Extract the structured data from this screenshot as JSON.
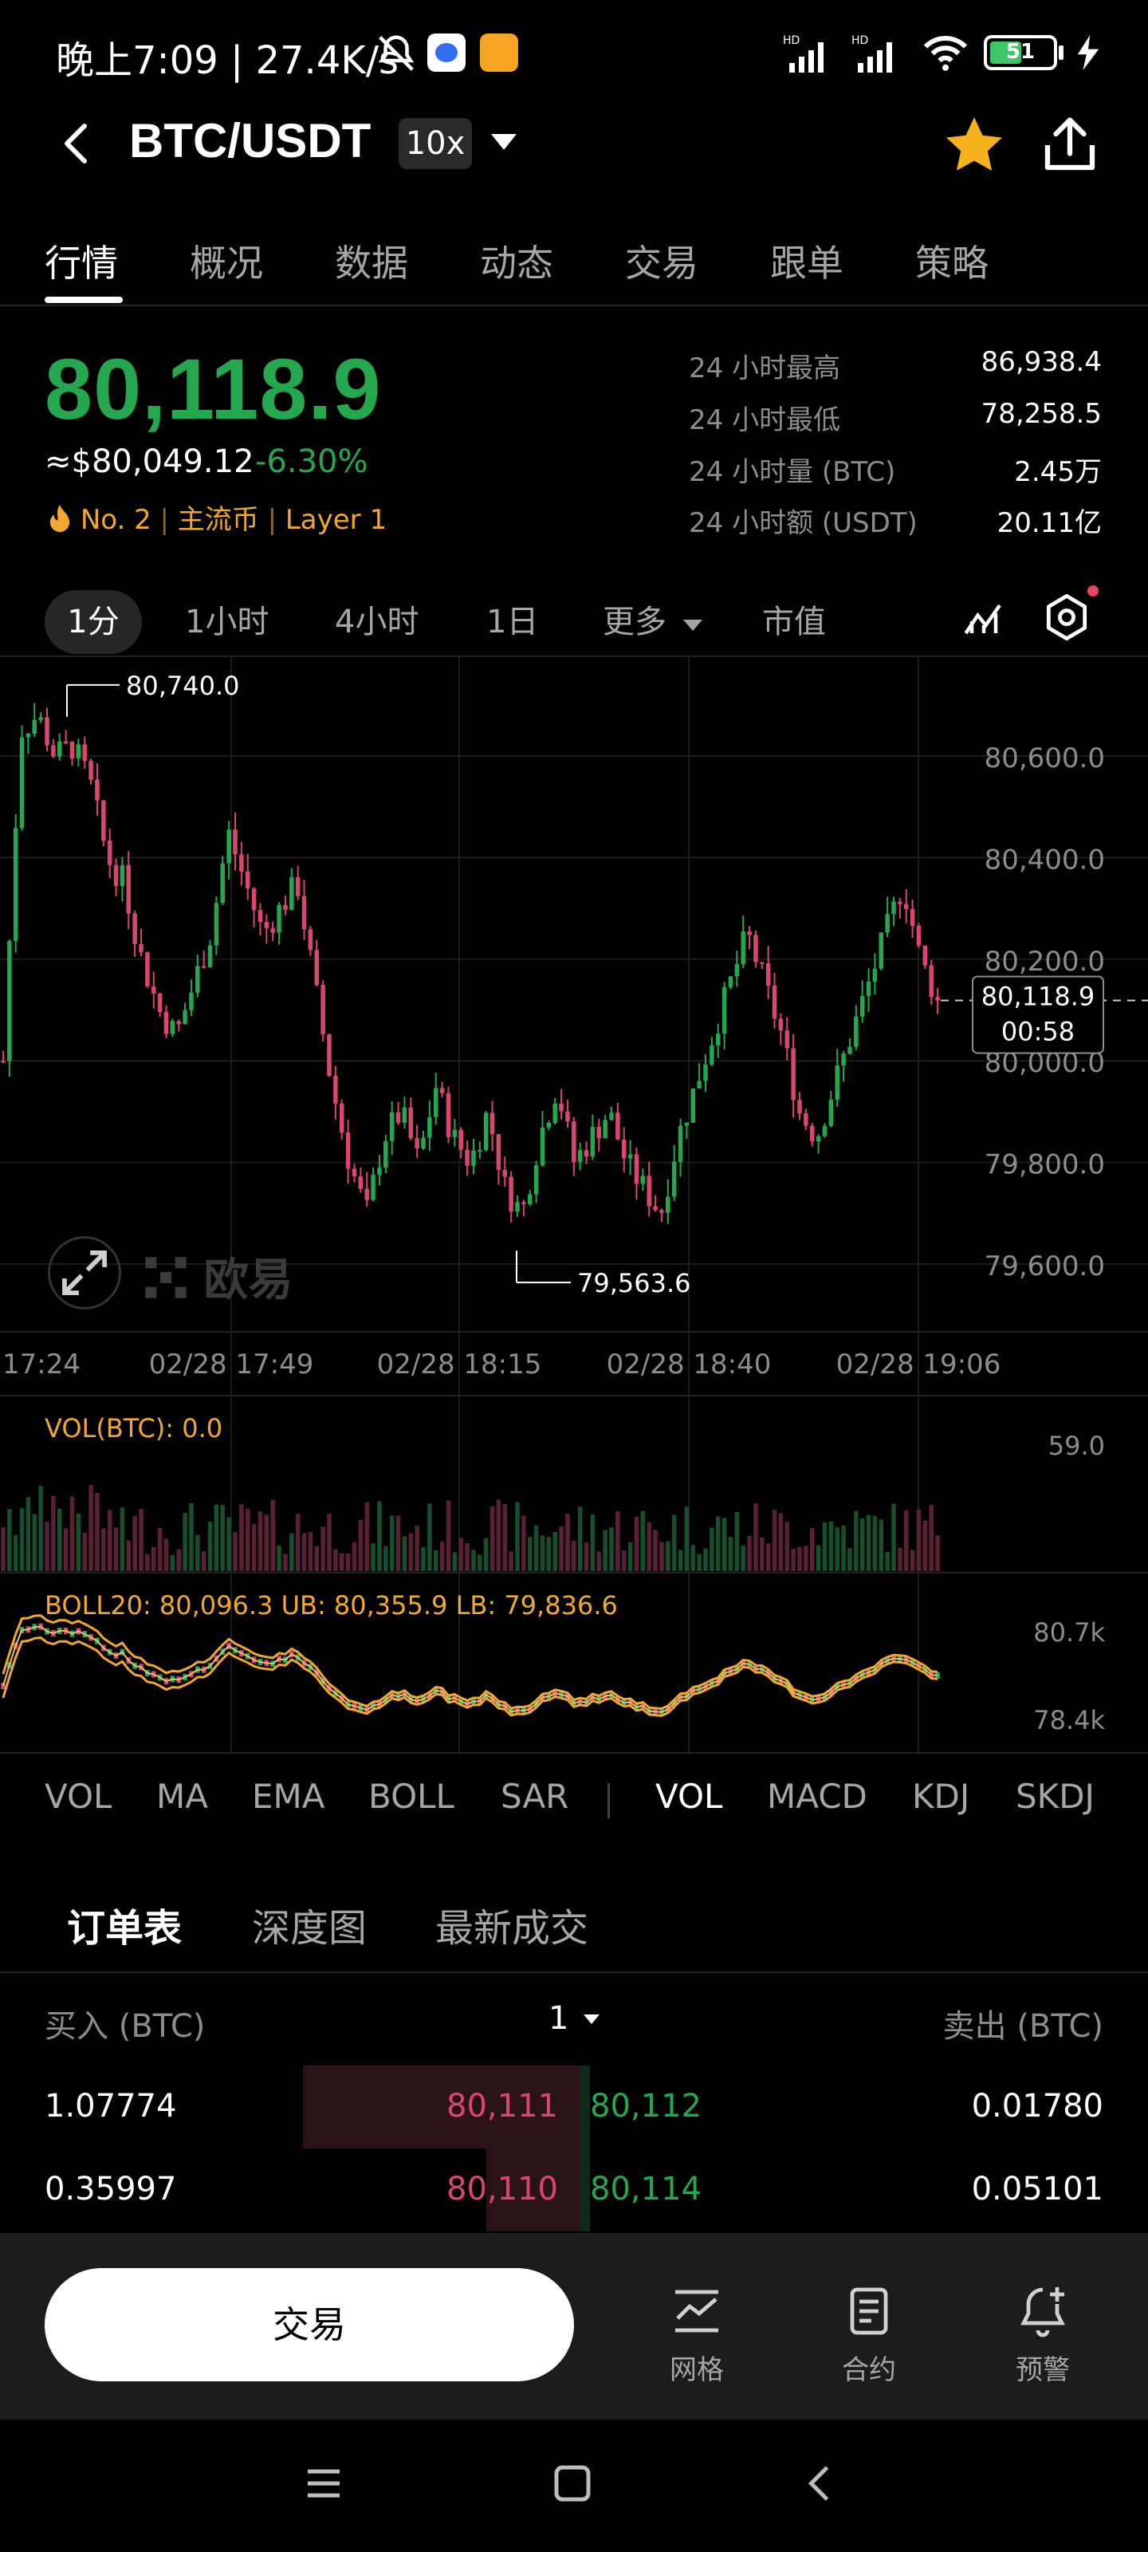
{
  "status_bar": {
    "time_text": "晚上7:09 | 27.4K/s",
    "battery": "51"
  },
  "header": {
    "pair": "BTC/USDT",
    "leverage": "10x"
  },
  "tabs": [
    "行情",
    "概况",
    "数据",
    "动态",
    "交易",
    "跟单",
    "策略"
  ],
  "ticker": {
    "last_price": "80,118.9",
    "usd_price": "≈$80,049.12",
    "change": "-6.30%",
    "rank": "No. 2",
    "tag1": "主流币",
    "tag2": "Layer 1",
    "stats": [
      {
        "label": "24 小时最高",
        "value": "86,938.4"
      },
      {
        "label": "24 小时最低",
        "value": "78,258.5"
      },
      {
        "label": "24 小时量 (BTC)",
        "value": "2.45万"
      },
      {
        "label": "24 小时额 (USDT)",
        "value": "20.11亿"
      }
    ]
  },
  "intervals": [
    "1分",
    "1小时",
    "4小时",
    "1日",
    "更多",
    "市值"
  ],
  "chart": {
    "y_labels": [
      "80,600.0",
      "80,400.0",
      "80,200.0",
      "80,000.0",
      "79,800.0",
      "79,600.0"
    ],
    "x_labels": [
      "17:24",
      "02/28 17:49",
      "02/28 18:15",
      "02/28 18:40",
      "02/28 19:06"
    ],
    "high_marker": "80,740.0",
    "low_marker": "79,563.6",
    "current_price": "80,118.9",
    "countdown": "00:58",
    "watermark": "欧易",
    "vol_label": "VOL(BTC): 0.0",
    "vol_max": "59.0",
    "boll_label": "BOLL20: 80,096.3 UB: 80,355.9 LB: 79,836.6",
    "boll_top": "80.7k",
    "boll_bottom": "78.4k"
  },
  "chart_data": {
    "type": "candlestick",
    "x_ticks": [
      "17:24",
      "02/28 17:49",
      "02/28 18:15",
      "02/28 18:40",
      "02/28 19:06"
    ],
    "y_ticks": [
      79600,
      79800,
      80000,
      80200,
      80400,
      80600
    ],
    "high": 80740.0,
    "low": 79563.6,
    "last": 80118.9,
    "close_path": [
      80000,
      80650,
      80680,
      80600,
      80620,
      80550,
      80400,
      80350,
      80200,
      80100,
      80050,
      80150,
      80250,
      80450,
      80350,
      80250,
      80300,
      80350,
      80150,
      79950,
      79800,
      79700,
      79850,
      79900,
      79800,
      79950,
      79850,
      79800,
      79900,
      79750,
      79700,
      79850,
      79950,
      79800,
      79850,
      79900,
      79800,
      79750,
      79700,
      79850,
      79950,
      80050,
      80150,
      80250,
      80150,
      80050,
      79900,
      79850,
      79950,
      80050,
      80150,
      80250,
      80350,
      80200,
      80118.9
    ],
    "volume_max": 59.0,
    "boll": {
      "mid": 80096.3,
      "ub": 80355.9,
      "lb": 79836.6
    }
  },
  "indicators_main": [
    "VOL",
    "MA",
    "EMA",
    "BOLL",
    "SAR"
  ],
  "indicators_sub": [
    "VOL",
    "MACD",
    "KDJ",
    "SKDJ"
  ],
  "orderbook": {
    "tabs": [
      "订单表",
      "深度图",
      "最新成交"
    ],
    "buy_header": "买入 (BTC)",
    "sell_header": "卖出 (BTC)",
    "precision": "1",
    "rows": [
      {
        "bid_qty": "1.07774",
        "bid_px": "80,111",
        "ask_px": "80,112",
        "ask_qty": "0.01780",
        "bid_depth": 0.59,
        "ask_depth": 0.02
      },
      {
        "bid_qty": "0.35997",
        "bid_px": "80,110",
        "ask_px": "80,114",
        "ask_qty": "0.05101",
        "bid_depth": 0.2,
        "ask_depth": 0.02
      }
    ]
  },
  "bottom_bar": {
    "trade": "交易",
    "grid": "网格",
    "futures": "合约",
    "alert": "预警"
  },
  "colors": {
    "up": "#25a750",
    "down": "#d9466f",
    "accent": "#f0a830"
  }
}
